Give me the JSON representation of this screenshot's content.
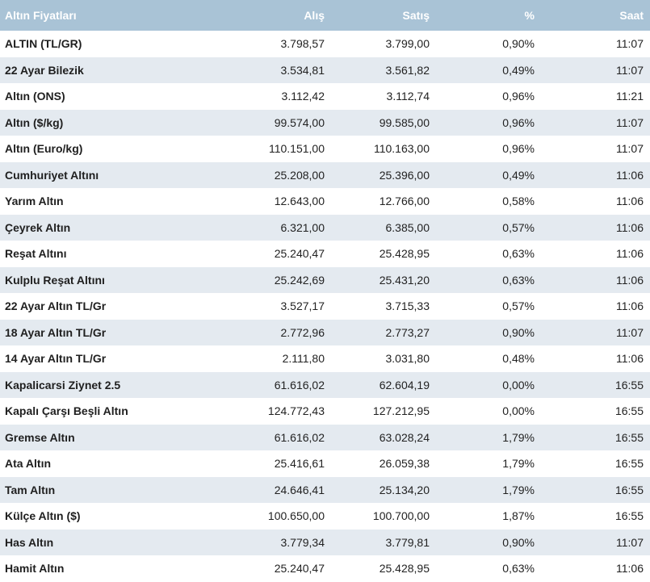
{
  "table": {
    "headers": {
      "name": "Altın Fiyatları",
      "buy": "Alış",
      "sell": "Satış",
      "pct": "%",
      "time": "Saat"
    },
    "rows": [
      {
        "name": "ALTIN (TL/GR)",
        "buy": "3.798,57",
        "sell": "3.799,00",
        "pct": "0,90%",
        "time": "11:07"
      },
      {
        "name": "22 Ayar Bilezik",
        "buy": "3.534,81",
        "sell": "3.561,82",
        "pct": "0,49%",
        "time": "11:07"
      },
      {
        "name": "Altın (ONS)",
        "buy": "3.112,42",
        "sell": "3.112,74",
        "pct": "0,96%",
        "time": "11:21"
      },
      {
        "name": "Altın ($/kg)",
        "buy": "99.574,00",
        "sell": "99.585,00",
        "pct": "0,96%",
        "time": "11:07"
      },
      {
        "name": "Altın (Euro/kg)",
        "buy": "110.151,00",
        "sell": "110.163,00",
        "pct": "0,96%",
        "time": "11:07"
      },
      {
        "name": "Cumhuriyet Altını",
        "buy": "25.208,00",
        "sell": "25.396,00",
        "pct": "0,49%",
        "time": "11:06"
      },
      {
        "name": "Yarım Altın",
        "buy": "12.643,00",
        "sell": "12.766,00",
        "pct": "0,58%",
        "time": "11:06"
      },
      {
        "name": "Çeyrek Altın",
        "buy": "6.321,00",
        "sell": "6.385,00",
        "pct": "0,57%",
        "time": "11:06"
      },
      {
        "name": "Reşat Altını",
        "buy": "25.240,47",
        "sell": "25.428,95",
        "pct": "0,63%",
        "time": "11:06"
      },
      {
        "name": "Kulplu Reşat Altını",
        "buy": "25.242,69",
        "sell": "25.431,20",
        "pct": "0,63%",
        "time": "11:06"
      },
      {
        "name": "22 Ayar Altın TL/Gr",
        "buy": "3.527,17",
        "sell": "3.715,33",
        "pct": "0,57%",
        "time": "11:06"
      },
      {
        "name": "18 Ayar Altın TL/Gr",
        "buy": "2.772,96",
        "sell": "2.773,27",
        "pct": "0,90%",
        "time": "11:07"
      },
      {
        "name": "14 Ayar Altın TL/Gr",
        "buy": "2.111,80",
        "sell": "3.031,80",
        "pct": "0,48%",
        "time": "11:06"
      },
      {
        "name": "Kapalicarsi Ziynet 2.5",
        "buy": "61.616,02",
        "sell": "62.604,19",
        "pct": "0,00%",
        "time": "16:55"
      },
      {
        "name": "Kapalı Çarşı Beşli Altın",
        "buy": "124.772,43",
        "sell": "127.212,95",
        "pct": "0,00%",
        "time": "16:55"
      },
      {
        "name": "Gremse Altın",
        "buy": "61.616,02",
        "sell": "63.028,24",
        "pct": "1,79%",
        "time": "16:55"
      },
      {
        "name": "Ata Altın",
        "buy": "25.416,61",
        "sell": "26.059,38",
        "pct": "1,79%",
        "time": "16:55"
      },
      {
        "name": "Tam Altın",
        "buy": "24.646,41",
        "sell": "25.134,20",
        "pct": "1,79%",
        "time": "16:55"
      },
      {
        "name": "Külçe Altın ($)",
        "buy": "100.650,00",
        "sell": "100.700,00",
        "pct": "1,87%",
        "time": "16:55"
      },
      {
        "name": "Has Altın",
        "buy": "3.779,34",
        "sell": "3.779,81",
        "pct": "0,90%",
        "time": "11:07"
      },
      {
        "name": "Hamit Altın",
        "buy": "25.240,47",
        "sell": "25.428,95",
        "pct": "0,63%",
        "time": "11:06"
      }
    ]
  },
  "colors": {
    "header_bg": "#a9c3d6",
    "header_text": "#ffffff",
    "row_alt_bg": "#e4eaf0",
    "row_bg": "#ffffff"
  }
}
